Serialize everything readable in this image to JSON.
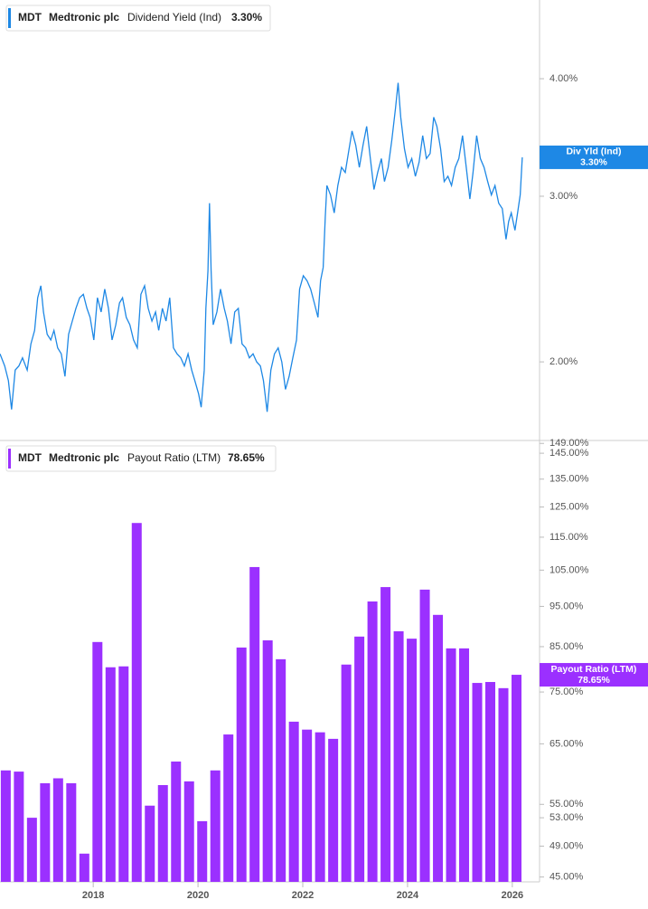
{
  "chart_data": [
    {
      "type": "line",
      "ticker": "MDT",
      "company": "Medtronic plc",
      "series": [
        {
          "name": "Dividend Yield (Ind)",
          "short_name": "Div Yld (Ind)",
          "color": "#1e88e5",
          "last_label": "3.30%",
          "x": [
            2016.22,
            2016.31,
            2016.38,
            2016.44,
            2016.51,
            2016.58,
            2016.65,
            2016.74,
            2016.81,
            2016.88,
            2016.94,
            2017.0,
            2017.05,
            2017.12,
            2017.19,
            2017.25,
            2017.32,
            2017.39,
            2017.46,
            2017.53,
            2017.6,
            2017.67,
            2017.74,
            2017.81,
            2017.88,
            2017.94,
            2018.01,
            2018.08,
            2018.15,
            2018.22,
            2018.29,
            2018.36,
            2018.43,
            2018.5,
            2018.56,
            2018.63,
            2018.7,
            2018.77,
            2018.84,
            2018.91,
            2018.98,
            2019.05,
            2019.12,
            2019.19,
            2019.25,
            2019.32,
            2019.39,
            2019.46,
            2019.53,
            2019.6,
            2019.67,
            2019.74,
            2019.81,
            2019.88,
            2019.94,
            2020.01,
            2020.06,
            2020.12,
            2020.15,
            2020.19,
            2020.22,
            2020.25,
            2020.29,
            2020.36,
            2020.43,
            2020.5,
            2020.56,
            2020.63,
            2020.7,
            2020.77,
            2020.84,
            2020.91,
            2020.98,
            2021.05,
            2021.12,
            2021.19,
            2021.25,
            2021.32,
            2021.39,
            2021.46,
            2021.53,
            2021.6,
            2021.67,
            2021.74,
            2021.81,
            2021.88,
            2021.94,
            2022.01,
            2022.08,
            2022.15,
            2022.22,
            2022.29,
            2022.34,
            2022.39,
            2022.43,
            2022.46,
            2022.53,
            2022.6,
            2022.67,
            2022.74,
            2022.81,
            2022.87,
            2022.94,
            2023.01,
            2023.08,
            2023.15,
            2023.22,
            2023.29,
            2023.36,
            2023.43,
            2023.5,
            2023.56,
            2023.63,
            2023.7,
            2023.77,
            2023.82,
            2023.87,
            2023.94,
            2024.01,
            2024.08,
            2024.15,
            2024.22,
            2024.29,
            2024.36,
            2024.43,
            2024.5,
            2024.56,
            2024.63,
            2024.7,
            2024.77,
            2024.84,
            2024.91,
            2024.98,
            2025.05,
            2025.12,
            2025.19,
            2025.25,
            2025.32,
            2025.39,
            2025.46,
            2025.53,
            2025.6,
            2025.67,
            2025.74,
            2025.81,
            2025.88,
            2025.93,
            2025.98,
            2026.05,
            2026.1,
            2026.15,
            2026.19
          ],
          "values": [
            2.04,
            1.98,
            1.91,
            1.78,
            1.96,
            1.98,
            2.02,
            1.96,
            2.09,
            2.16,
            2.34,
            2.41,
            2.26,
            2.14,
            2.11,
            2.16,
            2.07,
            2.04,
            1.93,
            2.14,
            2.21,
            2.28,
            2.34,
            2.36,
            2.28,
            2.23,
            2.11,
            2.34,
            2.26,
            2.39,
            2.28,
            2.11,
            2.19,
            2.31,
            2.34,
            2.23,
            2.19,
            2.11,
            2.07,
            2.36,
            2.41,
            2.28,
            2.21,
            2.26,
            2.16,
            2.28,
            2.21,
            2.34,
            2.07,
            2.04,
            2.02,
            1.98,
            2.04,
            1.96,
            1.91,
            1.85,
            1.79,
            1.96,
            2.28,
            2.5,
            2.95,
            2.5,
            2.19,
            2.26,
            2.39,
            2.28,
            2.21,
            2.09,
            2.26,
            2.28,
            2.09,
            2.07,
            2.02,
            2.04,
            2.0,
            1.98,
            1.91,
            1.77,
            1.96,
            2.04,
            2.07,
            2.0,
            1.87,
            1.93,
            2.02,
            2.11,
            2.39,
            2.47,
            2.44,
            2.39,
            2.31,
            2.23,
            2.44,
            2.52,
            2.85,
            3.08,
            3.01,
            2.88,
            3.08,
            3.22,
            3.18,
            3.33,
            3.52,
            3.4,
            3.22,
            3.4,
            3.56,
            3.29,
            3.05,
            3.18,
            3.29,
            3.11,
            3.22,
            3.44,
            3.72,
            3.96,
            3.64,
            3.37,
            3.22,
            3.29,
            3.15,
            3.26,
            3.48,
            3.29,
            3.33,
            3.64,
            3.56,
            3.37,
            3.11,
            3.15,
            3.08,
            3.22,
            3.29,
            3.48,
            3.22,
            2.98,
            3.18,
            3.48,
            3.29,
            3.22,
            3.11,
            3.01,
            3.08,
            2.95,
            2.91,
            2.7,
            2.82,
            2.88,
            2.76,
            2.88,
            3.01,
            3.3
          ]
        }
      ],
      "log_scale": true,
      "ylim": [
        1.65,
        4.85
      ],
      "xlim": [
        2016.22,
        2026.52
      ],
      "yticks": [
        {
          "value": 2,
          "label": "2.00%"
        },
        {
          "value": 3,
          "label": "3.00%"
        },
        {
          "value": 4,
          "label": "4.00%"
        }
      ]
    },
    {
      "type": "bar",
      "ticker": "MDT",
      "company": "Medtronic plc",
      "series": [
        {
          "name": "Payout Ratio (LTM)",
          "short_name": "Payout Ratio (LTM)",
          "color": "#9b30ff",
          "last_label": "78.65%",
          "x": [
            2016.33,
            2016.58,
            2016.83,
            2017.08,
            2017.33,
            2017.58,
            2017.83,
            2018.08,
            2018.33,
            2018.58,
            2018.83,
            2019.08,
            2019.33,
            2019.58,
            2019.83,
            2020.08,
            2020.33,
            2020.58,
            2020.83,
            2021.08,
            2021.33,
            2021.58,
            2021.83,
            2022.08,
            2022.33,
            2022.58,
            2022.83,
            2023.08,
            2023.33,
            2023.58,
            2023.83,
            2024.08,
            2024.33,
            2024.58,
            2024.83,
            2025.08,
            2025.33,
            2025.58,
            2025.83,
            2026.08
          ],
          "values": [
            60.4,
            60.2,
            53.0,
            58.3,
            59.1,
            58.3,
            48.0,
            86.1,
            80.3,
            80.5,
            119.6,
            54.8,
            58.0,
            61.9,
            58.6,
            52.5,
            60.4,
            66.7,
            84.8,
            105.9,
            86.5,
            82.1,
            69.1,
            67.6,
            67.1,
            65.9,
            80.9,
            87.4,
            96.3,
            100.2,
            88.7,
            86.9,
            99.5,
            92.8,
            84.6,
            84.6,
            76.9,
            77.1,
            75.8,
            78.65
          ]
        }
      ],
      "log_scale": true,
      "ylim": [
        44.4,
        150.2
      ],
      "xlim": [
        2016.22,
        2026.52
      ],
      "yticks": [
        {
          "value": 149,
          "label": "149.00%"
        },
        {
          "value": 145,
          "label": "145.00%"
        },
        {
          "value": 135,
          "label": "135.00%"
        },
        {
          "value": 125,
          "label": "125.00%"
        },
        {
          "value": 115,
          "label": "115.00%"
        },
        {
          "value": 105,
          "label": "105.00%"
        },
        {
          "value": 95,
          "label": "95.00%"
        },
        {
          "value": 85,
          "label": "85.00%"
        },
        {
          "value": 75,
          "label": "75.00%"
        },
        {
          "value": 65,
          "label": "65.00%"
        },
        {
          "value": 55,
          "label": "55.00%"
        },
        {
          "value": 53,
          "label": "53.00%"
        },
        {
          "value": 49,
          "label": "49.00%"
        },
        {
          "value": 45,
          "label": "45.00%"
        }
      ],
      "xticks": [
        2018,
        2020,
        2022,
        2024,
        2026
      ]
    }
  ]
}
